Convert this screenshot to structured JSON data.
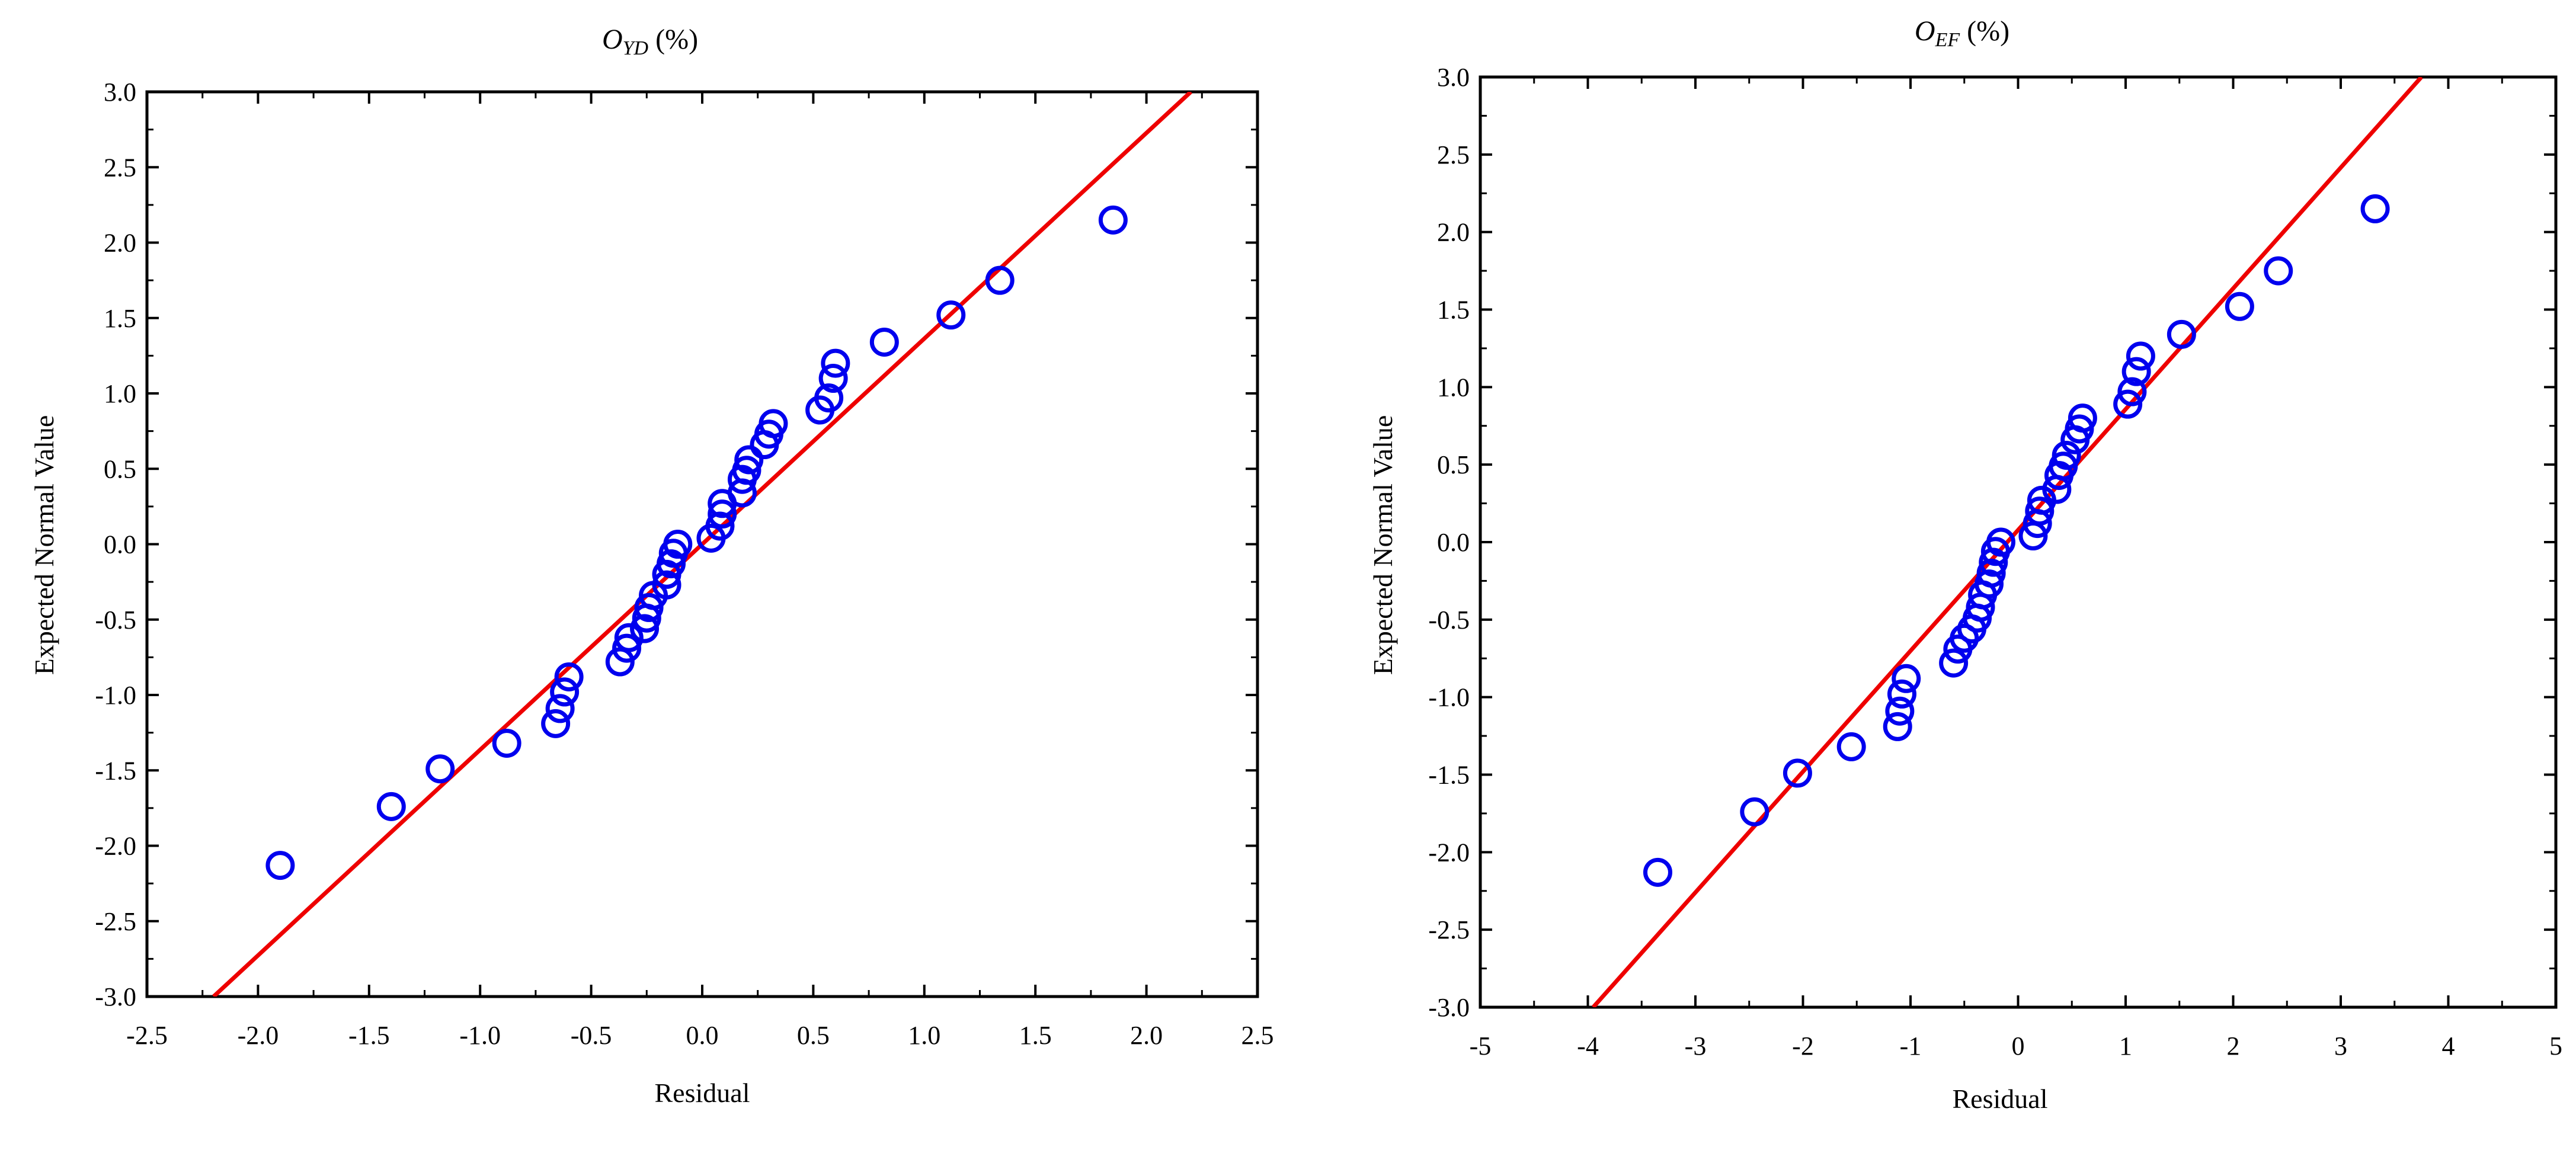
{
  "chart_data": [
    {
      "type": "scatter",
      "title_main": "O",
      "title_sub": "YD",
      "title_rest": " (%)",
      "xlabel": "Residual",
      "ylabel": "Expected Normal Value",
      "xlim": [
        -2.5,
        2.5
      ],
      "ylim": [
        -3.0,
        3.0
      ],
      "xticks": [
        "-2.5",
        "-2.0",
        "-1.5",
        "-1.0",
        "-0.5",
        "0.0",
        "0.5",
        "1.0",
        "1.5",
        "2.0",
        "2.5"
      ],
      "yticks": [
        "-3.0",
        "-2.5",
        "-2.0",
        "-1.5",
        "-1.0",
        "-0.5",
        "0.0",
        "0.5",
        "1.0",
        "1.5",
        "2.0",
        "2.5",
        "3.0"
      ],
      "xtick_values": [
        -2.5,
        -2.0,
        -1.5,
        -1.0,
        -0.5,
        0.0,
        0.5,
        1.0,
        1.5,
        2.0,
        2.5
      ],
      "ytick_values": [
        -3.0,
        -2.5,
        -2.0,
        -1.5,
        -1.0,
        -0.5,
        0.0,
        0.5,
        1.0,
        1.5,
        2.0,
        2.5,
        3.0
      ],
      "grid": false,
      "marker_color": "#0000ee",
      "line_color": "#ee0000",
      "fit_line": {
        "x": [
          -2.2,
          2.2
        ],
        "y": [
          -3.0,
          3.0
        ]
      },
      "points": [
        [
          -1.9,
          -2.13
        ],
        [
          -1.4,
          -1.74
        ],
        [
          -1.18,
          -1.49
        ],
        [
          -0.88,
          -1.32
        ],
        [
          -0.66,
          -1.19
        ],
        [
          -0.64,
          -1.09
        ],
        [
          -0.62,
          -0.98
        ],
        [
          -0.6,
          -0.88
        ],
        [
          -0.37,
          -0.78
        ],
        [
          -0.34,
          -0.69
        ],
        [
          -0.33,
          -0.62
        ],
        [
          -0.26,
          -0.56
        ],
        [
          -0.25,
          -0.49
        ],
        [
          -0.24,
          -0.42
        ],
        [
          -0.22,
          -0.34
        ],
        [
          -0.16,
          -0.27
        ],
        [
          -0.16,
          -0.2
        ],
        [
          -0.14,
          -0.13
        ],
        [
          -0.13,
          -0.06
        ],
        [
          -0.11,
          0.0
        ],
        [
          0.04,
          0.04
        ],
        [
          0.08,
          0.12
        ],
        [
          0.09,
          0.2
        ],
        [
          0.09,
          0.27
        ],
        [
          0.18,
          0.34
        ],
        [
          0.18,
          0.43
        ],
        [
          0.2,
          0.49
        ],
        [
          0.21,
          0.56
        ],
        [
          0.28,
          0.66
        ],
        [
          0.3,
          0.73
        ],
        [
          0.32,
          0.8
        ],
        [
          0.53,
          0.89
        ],
        [
          0.57,
          0.97
        ],
        [
          0.59,
          1.1
        ],
        [
          0.6,
          1.2
        ],
        [
          0.82,
          1.34
        ],
        [
          1.12,
          1.52
        ],
        [
          1.34,
          1.75
        ],
        [
          1.85,
          2.15
        ]
      ]
    },
    {
      "type": "scatter",
      "title_main": "O",
      "title_sub": "EF",
      "title_rest": " (%)",
      "xlabel": "Residual",
      "ylabel": "Expected Normal Value",
      "xlim": [
        -5,
        5
      ],
      "ylim": [
        -3.0,
        3.0
      ],
      "xticks": [
        "-5",
        "-4",
        "-3",
        "-2",
        "-1",
        "0",
        "1",
        "2",
        "3",
        "4",
        "5"
      ],
      "yticks": [
        "-3.0",
        "-2.5",
        "-2.0",
        "-1.5",
        "-1.0",
        "-0.5",
        "0.0",
        "0.5",
        "1.0",
        "1.5",
        "2.0",
        "2.5",
        "3.0"
      ],
      "xtick_values": [
        -5,
        -4,
        -3,
        -2,
        -1,
        0,
        1,
        2,
        3,
        4,
        5
      ],
      "ytick_values": [
        -3.0,
        -2.5,
        -2.0,
        -1.5,
        -1.0,
        -0.5,
        0.0,
        0.5,
        1.0,
        1.5,
        2.0,
        2.5,
        3.0
      ],
      "grid": false,
      "marker_color": "#0000ee",
      "line_color": "#ee0000",
      "fit_line": {
        "x": [
          -3.95,
          3.75
        ],
        "y": [
          -3.0,
          3.0
        ]
      },
      "points": [
        [
          -3.35,
          -2.13
        ],
        [
          -2.45,
          -1.74
        ],
        [
          -2.05,
          -1.49
        ],
        [
          -1.55,
          -1.32
        ],
        [
          -1.12,
          -1.19
        ],
        [
          -1.1,
          -1.09
        ],
        [
          -1.08,
          -0.98
        ],
        [
          -1.04,
          -0.88
        ],
        [
          -0.6,
          -0.78
        ],
        [
          -0.56,
          -0.69
        ],
        [
          -0.5,
          -0.62
        ],
        [
          -0.43,
          -0.56
        ],
        [
          -0.38,
          -0.49
        ],
        [
          -0.35,
          -0.42
        ],
        [
          -0.33,
          -0.34
        ],
        [
          -0.27,
          -0.27
        ],
        [
          -0.25,
          -0.2
        ],
        [
          -0.23,
          -0.13
        ],
        [
          -0.21,
          -0.06
        ],
        [
          -0.16,
          0.0
        ],
        [
          0.14,
          0.04
        ],
        [
          0.18,
          0.12
        ],
        [
          0.2,
          0.2
        ],
        [
          0.22,
          0.27
        ],
        [
          0.36,
          0.34
        ],
        [
          0.38,
          0.43
        ],
        [
          0.42,
          0.49
        ],
        [
          0.45,
          0.56
        ],
        [
          0.53,
          0.66
        ],
        [
          0.57,
          0.73
        ],
        [
          0.6,
          0.8
        ],
        [
          1.02,
          0.89
        ],
        [
          1.06,
          0.97
        ],
        [
          1.1,
          1.1
        ],
        [
          1.14,
          1.2
        ],
        [
          1.52,
          1.34
        ],
        [
          2.06,
          1.52
        ],
        [
          2.42,
          1.75
        ],
        [
          3.32,
          2.15
        ]
      ]
    }
  ]
}
